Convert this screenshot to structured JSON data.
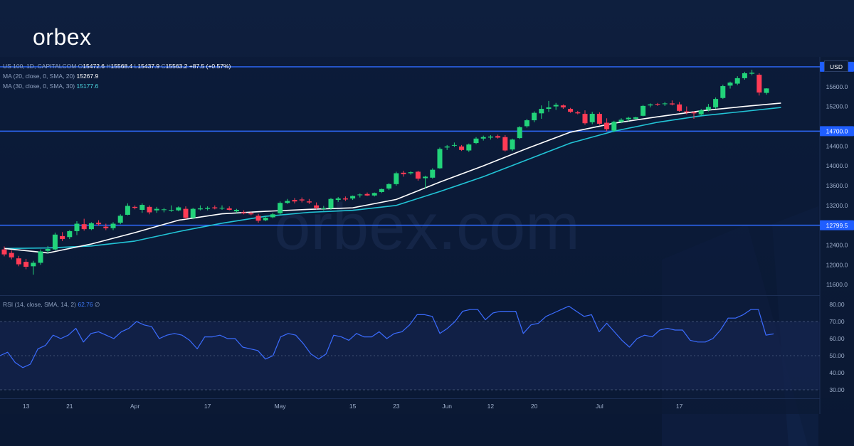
{
  "brand": {
    "logo_text": "orbex"
  },
  "watermark": "orbex.com",
  "legend": {
    "symbol_line": "US 100, 1D, CAPITALCOM",
    "ohlc": {
      "o_label": "O",
      "o": "15472.6",
      "h_label": "H",
      "h": "15568.4",
      "l_label": "L",
      "l": "15437.9",
      "c_label": "C",
      "c": "15563.2",
      "change": "+87.5 (+0.57%)"
    },
    "ma20": {
      "label": "MA (20, close, 0, SMA, 20)",
      "value": "15267.9"
    },
    "ma30": {
      "label": "MA (30, close, 0, SMA, 30)",
      "value": "15177.6"
    }
  },
  "currency_label": "USD",
  "colors": {
    "background": "#0c1b37",
    "bull": "#22d37a",
    "bear": "#ff3b55",
    "ma20": "#ffffff",
    "ma30": "#22c4d6",
    "level_line": "#2f6bff",
    "rsi_line": "#3b6cff"
  },
  "chart_data": [
    {
      "type": "candlestick",
      "title": "",
      "xlabel": "",
      "ylabel": "",
      "ylim": [
        11400,
        16200
      ],
      "y_ticks": [
        "11600.0",
        "12000.0",
        "12400.0",
        "13200.0",
        "13600.0",
        "14000.0",
        "14400.0",
        "15200.0",
        "15600.0"
      ],
      "x_ticks": [
        {
          "label": "13",
          "index": 3
        },
        {
          "label": "21",
          "index": 9
        },
        {
          "label": "Apr",
          "index": 18
        },
        {
          "label": "17",
          "index": 28
        },
        {
          "label": "May",
          "index": 38
        },
        {
          "label": "15",
          "index": 48
        },
        {
          "label": "23",
          "index": 54
        },
        {
          "label": "Jun",
          "index": 61
        },
        {
          "label": "12",
          "index": 67
        },
        {
          "label": "20",
          "index": 73
        },
        {
          "label": "Jul",
          "index": 82
        },
        {
          "label": "17",
          "index": 93
        }
      ],
      "levels": [
        {
          "value": 16000.0,
          "label": "16000.0"
        },
        {
          "value": 14700.0,
          "label": "14700.0"
        },
        {
          "value": 12799.5,
          "label": "12799.5"
        }
      ],
      "candles": [
        {
          "o": 12310,
          "h": 12370,
          "l": 12170,
          "c": 12210
        },
        {
          "o": 12240,
          "h": 12290,
          "l": 12110,
          "c": 12150
        },
        {
          "o": 12130,
          "h": 12180,
          "l": 11970,
          "c": 12010
        },
        {
          "o": 12060,
          "h": 12120,
          "l": 11910,
          "c": 11960
        },
        {
          "o": 11970,
          "h": 12080,
          "l": 11800,
          "c": 12040
        },
        {
          "o": 12040,
          "h": 12310,
          "l": 12000,
          "c": 12270
        },
        {
          "o": 12280,
          "h": 12380,
          "l": 12230,
          "c": 12320
        },
        {
          "o": 12310,
          "h": 12650,
          "l": 12290,
          "c": 12610
        },
        {
          "o": 12580,
          "h": 12660,
          "l": 12480,
          "c": 12520
        },
        {
          "o": 12560,
          "h": 12700,
          "l": 12520,
          "c": 12680
        },
        {
          "o": 12680,
          "h": 12880,
          "l": 12600,
          "c": 12830
        },
        {
          "o": 12820,
          "h": 12930,
          "l": 12690,
          "c": 12720
        },
        {
          "o": 12720,
          "h": 12860,
          "l": 12700,
          "c": 12840
        },
        {
          "o": 12850,
          "h": 12900,
          "l": 12790,
          "c": 12820
        },
        {
          "o": 12770,
          "h": 12830,
          "l": 12700,
          "c": 12740
        },
        {
          "o": 12740,
          "h": 12860,
          "l": 12700,
          "c": 12830
        },
        {
          "o": 12850,
          "h": 13020,
          "l": 12820,
          "c": 12990
        },
        {
          "o": 13010,
          "h": 13240,
          "l": 13000,
          "c": 13190
        },
        {
          "o": 13170,
          "h": 13200,
          "l": 13120,
          "c": 13150
        },
        {
          "o": 13110,
          "h": 13240,
          "l": 13050,
          "c": 13210
        },
        {
          "o": 13170,
          "h": 13200,
          "l": 13020,
          "c": 13060
        },
        {
          "o": 13100,
          "h": 13170,
          "l": 13050,
          "c": 13130
        },
        {
          "o": 13110,
          "h": 13150,
          "l": 13060,
          "c": 13120
        },
        {
          "o": 13100,
          "h": 13200,
          "l": 13070,
          "c": 13110
        },
        {
          "o": 13100,
          "h": 13180,
          "l": 13080,
          "c": 13160
        },
        {
          "o": 13130,
          "h": 13180,
          "l": 12920,
          "c": 12950
        },
        {
          "o": 12950,
          "h": 13150,
          "l": 12920,
          "c": 13130
        },
        {
          "o": 13120,
          "h": 13200,
          "l": 13100,
          "c": 13140
        },
        {
          "o": 13130,
          "h": 13180,
          "l": 13100,
          "c": 13150
        },
        {
          "o": 13160,
          "h": 13200,
          "l": 13120,
          "c": 13140
        },
        {
          "o": 13140,
          "h": 13200,
          "l": 13110,
          "c": 13150
        },
        {
          "o": 13140,
          "h": 13180,
          "l": 13100,
          "c": 13110
        },
        {
          "o": 13080,
          "h": 13130,
          "l": 13050,
          "c": 13110
        },
        {
          "o": 13060,
          "h": 13100,
          "l": 13020,
          "c": 13040
        },
        {
          "o": 13040,
          "h": 13070,
          "l": 13000,
          "c": 13020
        },
        {
          "o": 12990,
          "h": 13030,
          "l": 12850,
          "c": 12890
        },
        {
          "o": 12900,
          "h": 12980,
          "l": 12880,
          "c": 12950
        },
        {
          "o": 12960,
          "h": 13050,
          "l": 12940,
          "c": 13020
        },
        {
          "o": 13040,
          "h": 13280,
          "l": 13010,
          "c": 13250
        },
        {
          "o": 13250,
          "h": 13330,
          "l": 13230,
          "c": 13290
        },
        {
          "o": 13310,
          "h": 13350,
          "l": 13240,
          "c": 13280
        },
        {
          "o": 13320,
          "h": 13360,
          "l": 13260,
          "c": 13300
        },
        {
          "o": 13280,
          "h": 13330,
          "l": 13230,
          "c": 13260
        },
        {
          "o": 13200,
          "h": 13260,
          "l": 13120,
          "c": 13150
        },
        {
          "o": 13130,
          "h": 13190,
          "l": 13100,
          "c": 13140
        },
        {
          "o": 13140,
          "h": 13350,
          "l": 13110,
          "c": 13330
        },
        {
          "o": 13310,
          "h": 13370,
          "l": 13270,
          "c": 13340
        },
        {
          "o": 13340,
          "h": 13380,
          "l": 13290,
          "c": 13320
        },
        {
          "o": 13340,
          "h": 13400,
          "l": 13310,
          "c": 13390
        },
        {
          "o": 13410,
          "h": 13440,
          "l": 13360,
          "c": 13420
        },
        {
          "o": 13430,
          "h": 13460,
          "l": 13390,
          "c": 13400
        },
        {
          "o": 13400,
          "h": 13460,
          "l": 13380,
          "c": 13450
        },
        {
          "o": 13470,
          "h": 13540,
          "l": 13450,
          "c": 13530
        },
        {
          "o": 13540,
          "h": 13650,
          "l": 13510,
          "c": 13630
        },
        {
          "o": 13630,
          "h": 13880,
          "l": 13600,
          "c": 13850
        },
        {
          "o": 13860,
          "h": 13900,
          "l": 13780,
          "c": 13830
        },
        {
          "o": 13850,
          "h": 13890,
          "l": 13820,
          "c": 13870
        },
        {
          "o": 13880,
          "h": 13900,
          "l": 13700,
          "c": 13740
        },
        {
          "o": 13750,
          "h": 13800,
          "l": 13540,
          "c": 13780
        },
        {
          "o": 13760,
          "h": 13950,
          "l": 13740,
          "c": 13920
        },
        {
          "o": 13950,
          "h": 14370,
          "l": 13940,
          "c": 14340
        },
        {
          "o": 14370,
          "h": 14420,
          "l": 14320,
          "c": 14390
        },
        {
          "o": 14410,
          "h": 14470,
          "l": 14380,
          "c": 14420
        },
        {
          "o": 14390,
          "h": 14420,
          "l": 14300,
          "c": 14320
        },
        {
          "o": 14310,
          "h": 14450,
          "l": 14280,
          "c": 14430
        },
        {
          "o": 14460,
          "h": 14580,
          "l": 14440,
          "c": 14550
        },
        {
          "o": 14550,
          "h": 14610,
          "l": 14510,
          "c": 14580
        },
        {
          "o": 14570,
          "h": 14620,
          "l": 14530,
          "c": 14590
        },
        {
          "o": 14600,
          "h": 14630,
          "l": 14550,
          "c": 14570
        },
        {
          "o": 14580,
          "h": 14620,
          "l": 14290,
          "c": 14310
        },
        {
          "o": 14330,
          "h": 14550,
          "l": 14300,
          "c": 14530
        },
        {
          "o": 14560,
          "h": 14800,
          "l": 14540,
          "c": 14780
        },
        {
          "o": 14800,
          "h": 14950,
          "l": 14770,
          "c": 14920
        },
        {
          "o": 14920,
          "h": 15100,
          "l": 14880,
          "c": 15070
        },
        {
          "o": 15060,
          "h": 15220,
          "l": 14950,
          "c": 15150
        },
        {
          "o": 15150,
          "h": 15310,
          "l": 15090,
          "c": 15180
        },
        {
          "o": 15200,
          "h": 15270,
          "l": 15130,
          "c": 15230
        },
        {
          "o": 15220,
          "h": 15240,
          "l": 15150,
          "c": 15180
        },
        {
          "o": 15150,
          "h": 15170,
          "l": 15070,
          "c": 15090
        },
        {
          "o": 15080,
          "h": 15110,
          "l": 15040,
          "c": 15060
        },
        {
          "o": 15050,
          "h": 15120,
          "l": 14830,
          "c": 14860
        },
        {
          "o": 14880,
          "h": 15090,
          "l": 14840,
          "c": 15050
        },
        {
          "o": 15050,
          "h": 15080,
          "l": 14830,
          "c": 14850
        },
        {
          "o": 14870,
          "h": 14960,
          "l": 14700,
          "c": 14740
        },
        {
          "o": 14710,
          "h": 14910,
          "l": 14680,
          "c": 14890
        },
        {
          "o": 14890,
          "h": 14960,
          "l": 14860,
          "c": 14930
        },
        {
          "o": 14940,
          "h": 14990,
          "l": 14900,
          "c": 14970
        },
        {
          "o": 14950,
          "h": 14990,
          "l": 14930,
          "c": 14980
        },
        {
          "o": 15010,
          "h": 15230,
          "l": 15000,
          "c": 15210
        },
        {
          "o": 15220,
          "h": 15260,
          "l": 15180,
          "c": 15240
        },
        {
          "o": 15250,
          "h": 15270,
          "l": 15210,
          "c": 15240
        },
        {
          "o": 15260,
          "h": 15290,
          "l": 15210,
          "c": 15260
        },
        {
          "o": 15260,
          "h": 15320,
          "l": 15220,
          "c": 15240
        },
        {
          "o": 15240,
          "h": 15290,
          "l": 15090,
          "c": 15110
        },
        {
          "o": 15100,
          "h": 15200,
          "l": 15040,
          "c": 15080
        },
        {
          "o": 15080,
          "h": 15100,
          "l": 14950,
          "c": 15060
        },
        {
          "o": 15040,
          "h": 15150,
          "l": 15010,
          "c": 15120
        },
        {
          "o": 15130,
          "h": 15250,
          "l": 15100,
          "c": 15190
        },
        {
          "o": 15180,
          "h": 15380,
          "l": 15150,
          "c": 15350
        },
        {
          "o": 15370,
          "h": 15640,
          "l": 15350,
          "c": 15610
        },
        {
          "o": 15620,
          "h": 15700,
          "l": 15560,
          "c": 15680
        },
        {
          "o": 15660,
          "h": 15810,
          "l": 15630,
          "c": 15770
        },
        {
          "o": 15770,
          "h": 15900,
          "l": 15740,
          "c": 15870
        },
        {
          "o": 15860,
          "h": 15940,
          "l": 15830,
          "c": 15880
        },
        {
          "o": 15840,
          "h": 15870,
          "l": 15420,
          "c": 15480
        },
        {
          "o": 15472.6,
          "h": 15568.4,
          "l": 15437.9,
          "c": 15563.2
        }
      ],
      "ma20": [
        {
          "i": 0,
          "v": 12330
        },
        {
          "i": 6,
          "v": 12240
        },
        {
          "i": 12,
          "v": 12420
        },
        {
          "i": 18,
          "v": 12650
        },
        {
          "i": 24,
          "v": 12900
        },
        {
          "i": 30,
          "v": 13030
        },
        {
          "i": 36,
          "v": 13080
        },
        {
          "i": 42,
          "v": 13120
        },
        {
          "i": 48,
          "v": 13150
        },
        {
          "i": 54,
          "v": 13320
        },
        {
          "i": 60,
          "v": 13670
        },
        {
          "i": 66,
          "v": 14000
        },
        {
          "i": 72,
          "v": 14350
        },
        {
          "i": 78,
          "v": 14680
        },
        {
          "i": 84,
          "v": 14860
        },
        {
          "i": 90,
          "v": 14990
        },
        {
          "i": 96,
          "v": 15110
        },
        {
          "i": 102,
          "v": 15200
        },
        {
          "i": 107,
          "v": 15267.9
        }
      ],
      "ma30": [
        {
          "i": 0,
          "v": 12330
        },
        {
          "i": 6,
          "v": 12340
        },
        {
          "i": 12,
          "v": 12380
        },
        {
          "i": 18,
          "v": 12480
        },
        {
          "i": 24,
          "v": 12670
        },
        {
          "i": 30,
          "v": 12840
        },
        {
          "i": 36,
          "v": 12980
        },
        {
          "i": 42,
          "v": 13060
        },
        {
          "i": 48,
          "v": 13100
        },
        {
          "i": 54,
          "v": 13200
        },
        {
          "i": 60,
          "v": 13480
        },
        {
          "i": 66,
          "v": 13780
        },
        {
          "i": 72,
          "v": 14120
        },
        {
          "i": 78,
          "v": 14460
        },
        {
          "i": 84,
          "v": 14700
        },
        {
          "i": 90,
          "v": 14880
        },
        {
          "i": 96,
          "v": 15010
        },
        {
          "i": 102,
          "v": 15100
        },
        {
          "i": 107,
          "v": 15177.6
        }
      ]
    },
    {
      "type": "line",
      "title": "",
      "indicator_label": "RSI (14, close, SMA, 14, 2)",
      "value_label": "62.76",
      "extra_label": "∅",
      "ylim": [
        25,
        85
      ],
      "y_ticks": [
        "30.00",
        "40.00",
        "50.00",
        "60.00",
        "70.00",
        "80.00"
      ],
      "upper_band": 70,
      "lower_band": 30,
      "middle": 50,
      "series": [
        {
          "values": [
            50,
            52,
            46,
            43,
            45,
            54,
            56,
            62,
            60,
            62,
            66,
            58,
            63,
            64,
            62,
            60,
            64,
            66,
            70,
            68,
            67,
            60,
            62,
            63,
            62,
            59,
            54,
            61,
            61,
            62,
            60,
            60,
            55,
            54,
            53,
            48,
            50,
            61,
            63,
            62,
            57,
            51,
            48,
            51,
            62,
            61,
            59,
            63,
            61,
            61,
            64,
            60,
            63,
            64,
            68,
            74,
            74,
            73,
            63,
            66,
            70,
            76,
            77,
            77,
            71,
            75,
            76,
            76,
            76,
            63,
            68,
            69,
            73,
            75,
            77,
            79,
            76,
            73,
            74,
            64,
            69,
            64,
            59,
            55,
            60,
            62,
            61,
            65,
            66,
            65,
            65,
            59,
            58,
            58,
            60,
            65,
            72,
            72,
            74,
            77,
            77,
            62,
            62.76
          ]
        }
      ]
    }
  ]
}
